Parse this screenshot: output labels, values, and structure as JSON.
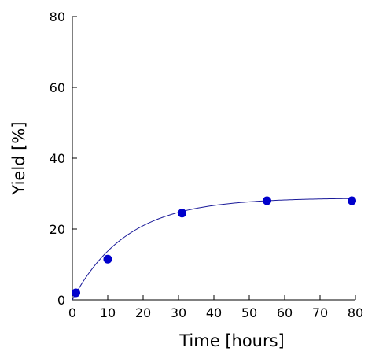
{
  "chart_data": {
    "type": "scatter",
    "xlabel": "Time [hours]",
    "ylabel": "Yield [%]",
    "xlim": [
      0,
      80
    ],
    "ylim": [
      0,
      80
    ],
    "x_ticks": [
      "0",
      "10",
      "20",
      "30",
      "40",
      "50",
      "60",
      "70",
      "80"
    ],
    "y_ticks": [
      "0",
      "20",
      "40",
      "60",
      "80"
    ],
    "grid": false,
    "series": [
      {
        "x": [
          1,
          10,
          31,
          55,
          79
        ],
        "y": [
          2,
          11.5,
          24.5,
          28,
          28
        ],
        "color": "#0000cc",
        "marker": "circle"
      }
    ],
    "fit_curve": {
      "color": "#1a1a99",
      "model": "exponential-saturation",
      "plateau": 28.8,
      "rate": 0.065,
      "x0": 0,
      "x_end": 80
    }
  }
}
